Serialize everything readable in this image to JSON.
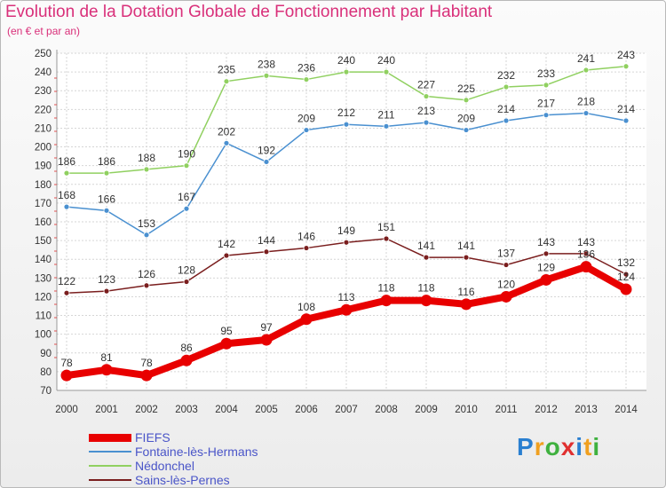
{
  "header": {
    "title": "Evolution de la Dotation Globale de Fonctionnement par Habitant",
    "subtitle": "(en € et par an)"
  },
  "logo": {
    "text": "Proxiti",
    "colors": [
      "#2a7fd0",
      "#f0a020",
      "#3fb13f",
      "#e03030"
    ]
  },
  "chart_data": {
    "type": "line",
    "x": [
      "2000",
      "2001",
      "2002",
      "2003",
      "2004",
      "2005",
      "2006",
      "2007",
      "2008",
      "2009",
      "2010",
      "2011",
      "2012",
      "2013",
      "2014"
    ],
    "ylim": [
      70,
      250
    ],
    "yticks": [
      70,
      80,
      90,
      100,
      110,
      120,
      130,
      140,
      150,
      160,
      170,
      180,
      190,
      200,
      210,
      220,
      230,
      240,
      250
    ],
    "grid": true,
    "legend_position": "bottom-left",
    "series": [
      {
        "name": "FIEFS",
        "color": "#e80000",
        "emphasis": true,
        "values": [
          78,
          81,
          78,
          86,
          95,
          97,
          108,
          113,
          118,
          118,
          116,
          120,
          129,
          136,
          124
        ]
      },
      {
        "name": "Fontaine-lès-Hermans",
        "color": "#4a90d0",
        "emphasis": false,
        "values": [
          168,
          166,
          153,
          167,
          202,
          192,
          209,
          212,
          211,
          213,
          209,
          214,
          217,
          218,
          214
        ]
      },
      {
        "name": "Nédonchel",
        "color": "#90d060",
        "emphasis": false,
        "values": [
          186,
          186,
          188,
          190,
          235,
          238,
          236,
          240,
          240,
          227,
          225,
          232,
          233,
          241,
          243
        ]
      },
      {
        "name": "Sains-lès-Pernes",
        "color": "#7a1e1e",
        "emphasis": false,
        "values": [
          122,
          123,
          126,
          128,
          142,
          144,
          146,
          149,
          151,
          141,
          141,
          137,
          143,
          143,
          132
        ]
      }
    ]
  }
}
